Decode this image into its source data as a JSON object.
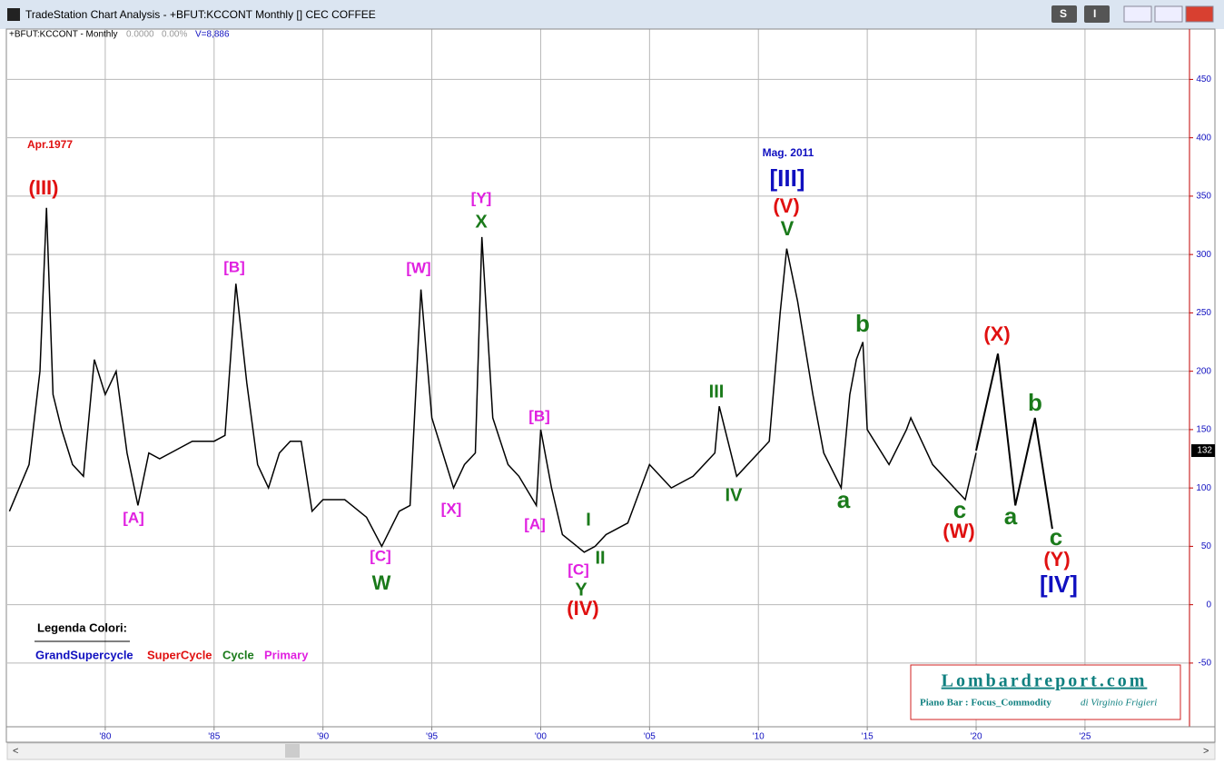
{
  "window": {
    "title": "TradeStation Chart Analysis - +BFUT:KCCONT Monthly [] CEC COFFEE",
    "buttons": [
      "S",
      "I"
    ]
  },
  "chart_header": {
    "symbol": "+BFUT:KCCONT - Monthly",
    "change": "0.0000",
    "change_pct": "0.00%",
    "volume": "V=8,886"
  },
  "chart_data": {
    "type": "line",
    "series": [
      {
        "color": "#000000",
        "x": [
          1975.6,
          1976.5,
          1977.0,
          1977.3,
          1977.6,
          1978.0,
          1978.5,
          1979.0,
          1979.5,
          1980.0,
          1980.5,
          1981.0,
          1981.5,
          1982.0,
          1982.5,
          1983.0,
          1984.0,
          1985.0,
          1985.5,
          1986.0,
          1986.5,
          1987.0,
          1987.5,
          1988.0,
          1988.5,
          1989.0,
          1989.5,
          1990.0,
          1991.0,
          1992.0,
          1992.7,
          1993.5,
          1994.0,
          1994.5,
          1995.0,
          1996.0,
          1996.5,
          1997.0,
          1997.3,
          1997.8,
          1998.5,
          1999.0,
          1999.8,
          2000.0,
          2000.5,
          2001.0,
          2002.0,
          2002.5,
          2003.0,
          2004.0,
          2005.0,
          2006.0,
          2007.0,
          2008.0,
          2008.2,
          2008.6,
          2009.0,
          2010.0,
          2010.5,
          2011.0,
          2011.3,
          2011.8,
          2012.5,
          2013.0,
          2013.8,
          2014.2,
          2014.5,
          2014.8,
          2015.0,
          2016.0,
          2016.8,
          2017.0,
          2018.0,
          2019.0,
          2019.5,
          2020.0
        ],
        "values": [
          80,
          120,
          200,
          340,
          180,
          150,
          120,
          110,
          210,
          180,
          200,
          130,
          85,
          130,
          125,
          130,
          140,
          140,
          145,
          275,
          190,
          120,
          100,
          130,
          140,
          140,
          80,
          90,
          90,
          75,
          50,
          80,
          85,
          270,
          160,
          100,
          120,
          130,
          315,
          160,
          120,
          110,
          85,
          150,
          100,
          60,
          45,
          50,
          60,
          70,
          120,
          100,
          110,
          130,
          170,
          140,
          110,
          130,
          140,
          250,
          305,
          260,
          180,
          130,
          100,
          180,
          210,
          225,
          150,
          120,
          150,
          160,
          120,
          100,
          90,
          130
        ]
      },
      {
        "color": "#000000",
        "x": [
          2020.0,
          2021.0,
          2021.8,
          2022.7,
          2023.5
        ],
        "values": [
          132,
          215,
          85,
          160,
          65
        ]
      }
    ],
    "last_price": 132,
    "xlim": [
      1975.5,
      2029.8
    ],
    "ylim": [
      -103,
      483
    ],
    "xticks": [
      {
        "value": 1980,
        "label": "'80"
      },
      {
        "value": 1985,
        "label": "'85"
      },
      {
        "value": 1990,
        "label": "'90"
      },
      {
        "value": 1995,
        "label": "'95"
      },
      {
        "value": 2000,
        "label": "'00"
      },
      {
        "value": 2005,
        "label": "'05"
      },
      {
        "value": 2010,
        "label": "'10"
      },
      {
        "value": 2015,
        "label": "'15"
      },
      {
        "value": 2020,
        "label": "'20"
      },
      {
        "value": 2025,
        "label": "'25"
      }
    ],
    "yticks": [
      -50,
      0,
      50,
      100,
      150,
      200,
      250,
      300,
      350,
      400,
      450
    ],
    "grid": true,
    "annotations": [
      {
        "text": "(III)",
        "color": "#e01010"
      },
      {
        "text": "[B]",
        "color": "#e020e0"
      },
      {
        "text": "[A]",
        "color": "#e020e0"
      },
      {
        "text": "[W]",
        "color": "#e020e0"
      },
      {
        "text": "[Y]",
        "color": "#e020e0"
      },
      {
        "text": "X",
        "color": "#1a7a1a"
      },
      {
        "text": "[X]",
        "color": "#e020e0"
      },
      {
        "text": "[C]",
        "color": "#e020e0"
      },
      {
        "text": "W",
        "color": "#1a7a1a"
      },
      {
        "text": "[B]",
        "color": "#e020e0"
      },
      {
        "text": "[A]",
        "color": "#e020e0"
      },
      {
        "text": "I",
        "color": "#1a7a1a"
      },
      {
        "text": "II",
        "color": "#1a7a1a"
      },
      {
        "text": "[C]",
        "color": "#e020e0"
      },
      {
        "text": "Y",
        "color": "#1a7a1a"
      },
      {
        "text": "(IV)",
        "color": "#e01010"
      },
      {
        "text": "III",
        "color": "#1a7a1a"
      },
      {
        "text": "IV",
        "color": "#1a7a1a"
      },
      {
        "text": "[III]",
        "color": "#1010c0"
      },
      {
        "text": "(V)",
        "color": "#e01010"
      },
      {
        "text": "V",
        "color": "#1a7a1a"
      },
      {
        "text": "b",
        "color": "#1a7a1a"
      },
      {
        "text": "a",
        "color": "#1a7a1a"
      },
      {
        "text": "(X)",
        "color": "#e01010"
      },
      {
        "text": "b",
        "color": "#1a7a1a"
      },
      {
        "text": "c",
        "color": "#1a7a1a"
      },
      {
        "text": "(W)",
        "color": "#e01010"
      },
      {
        "text": "a",
        "color": "#1a7a1a"
      },
      {
        "text": "c",
        "color": "#1a7a1a"
      },
      {
        "text": "(Y)",
        "color": "#e01010"
      },
      {
        "text": "[IV]",
        "color": "#1010c0"
      },
      {
        "text": "Apr.1977",
        "color": "#e01010"
      },
      {
        "text": "Mag. 2011",
        "color": "#1010c0"
      }
    ]
  },
  "legend": {
    "title": "Legenda Colori:",
    "entries": [
      {
        "text": "GrandSupercycle",
        "color": "#1010c0"
      },
      {
        "text": "SuperCycle",
        "color": "#e01010"
      },
      {
        "text": "Cycle",
        "color": "#1a7a1a"
      },
      {
        "text": "Primary",
        "color": "#e020e0"
      }
    ]
  },
  "logo": {
    "site": "Lombardreport.com",
    "line": "Piano Bar : Focus_Commodity",
    "author": "di Virginio Frigieri"
  }
}
